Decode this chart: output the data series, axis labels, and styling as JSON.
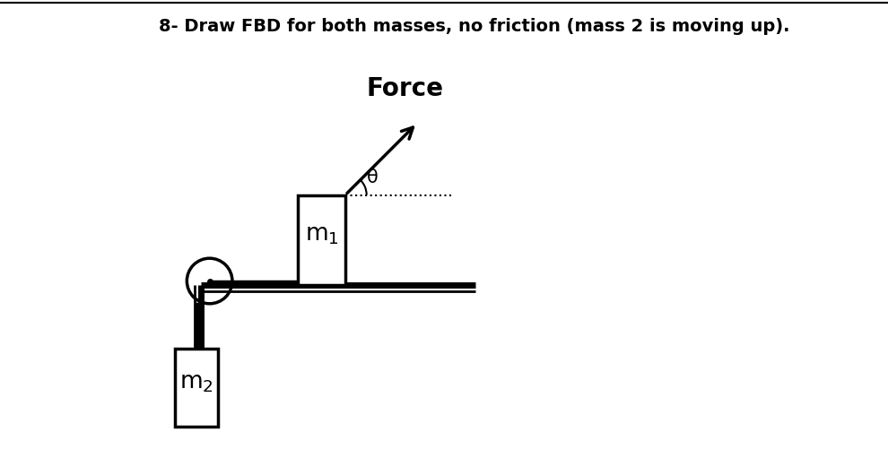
{
  "title": "8- Draw FBD for both masses, no friction (mass 2 is moving up).",
  "title_fontsize": 14,
  "bg_color": "#ffffff",
  "line_color": "#000000",
  "force_label": "Force",
  "force_fontsize": 20,
  "theta_label": "θ",
  "m1_label": "m$_1$",
  "m2_label": "m$_2$"
}
